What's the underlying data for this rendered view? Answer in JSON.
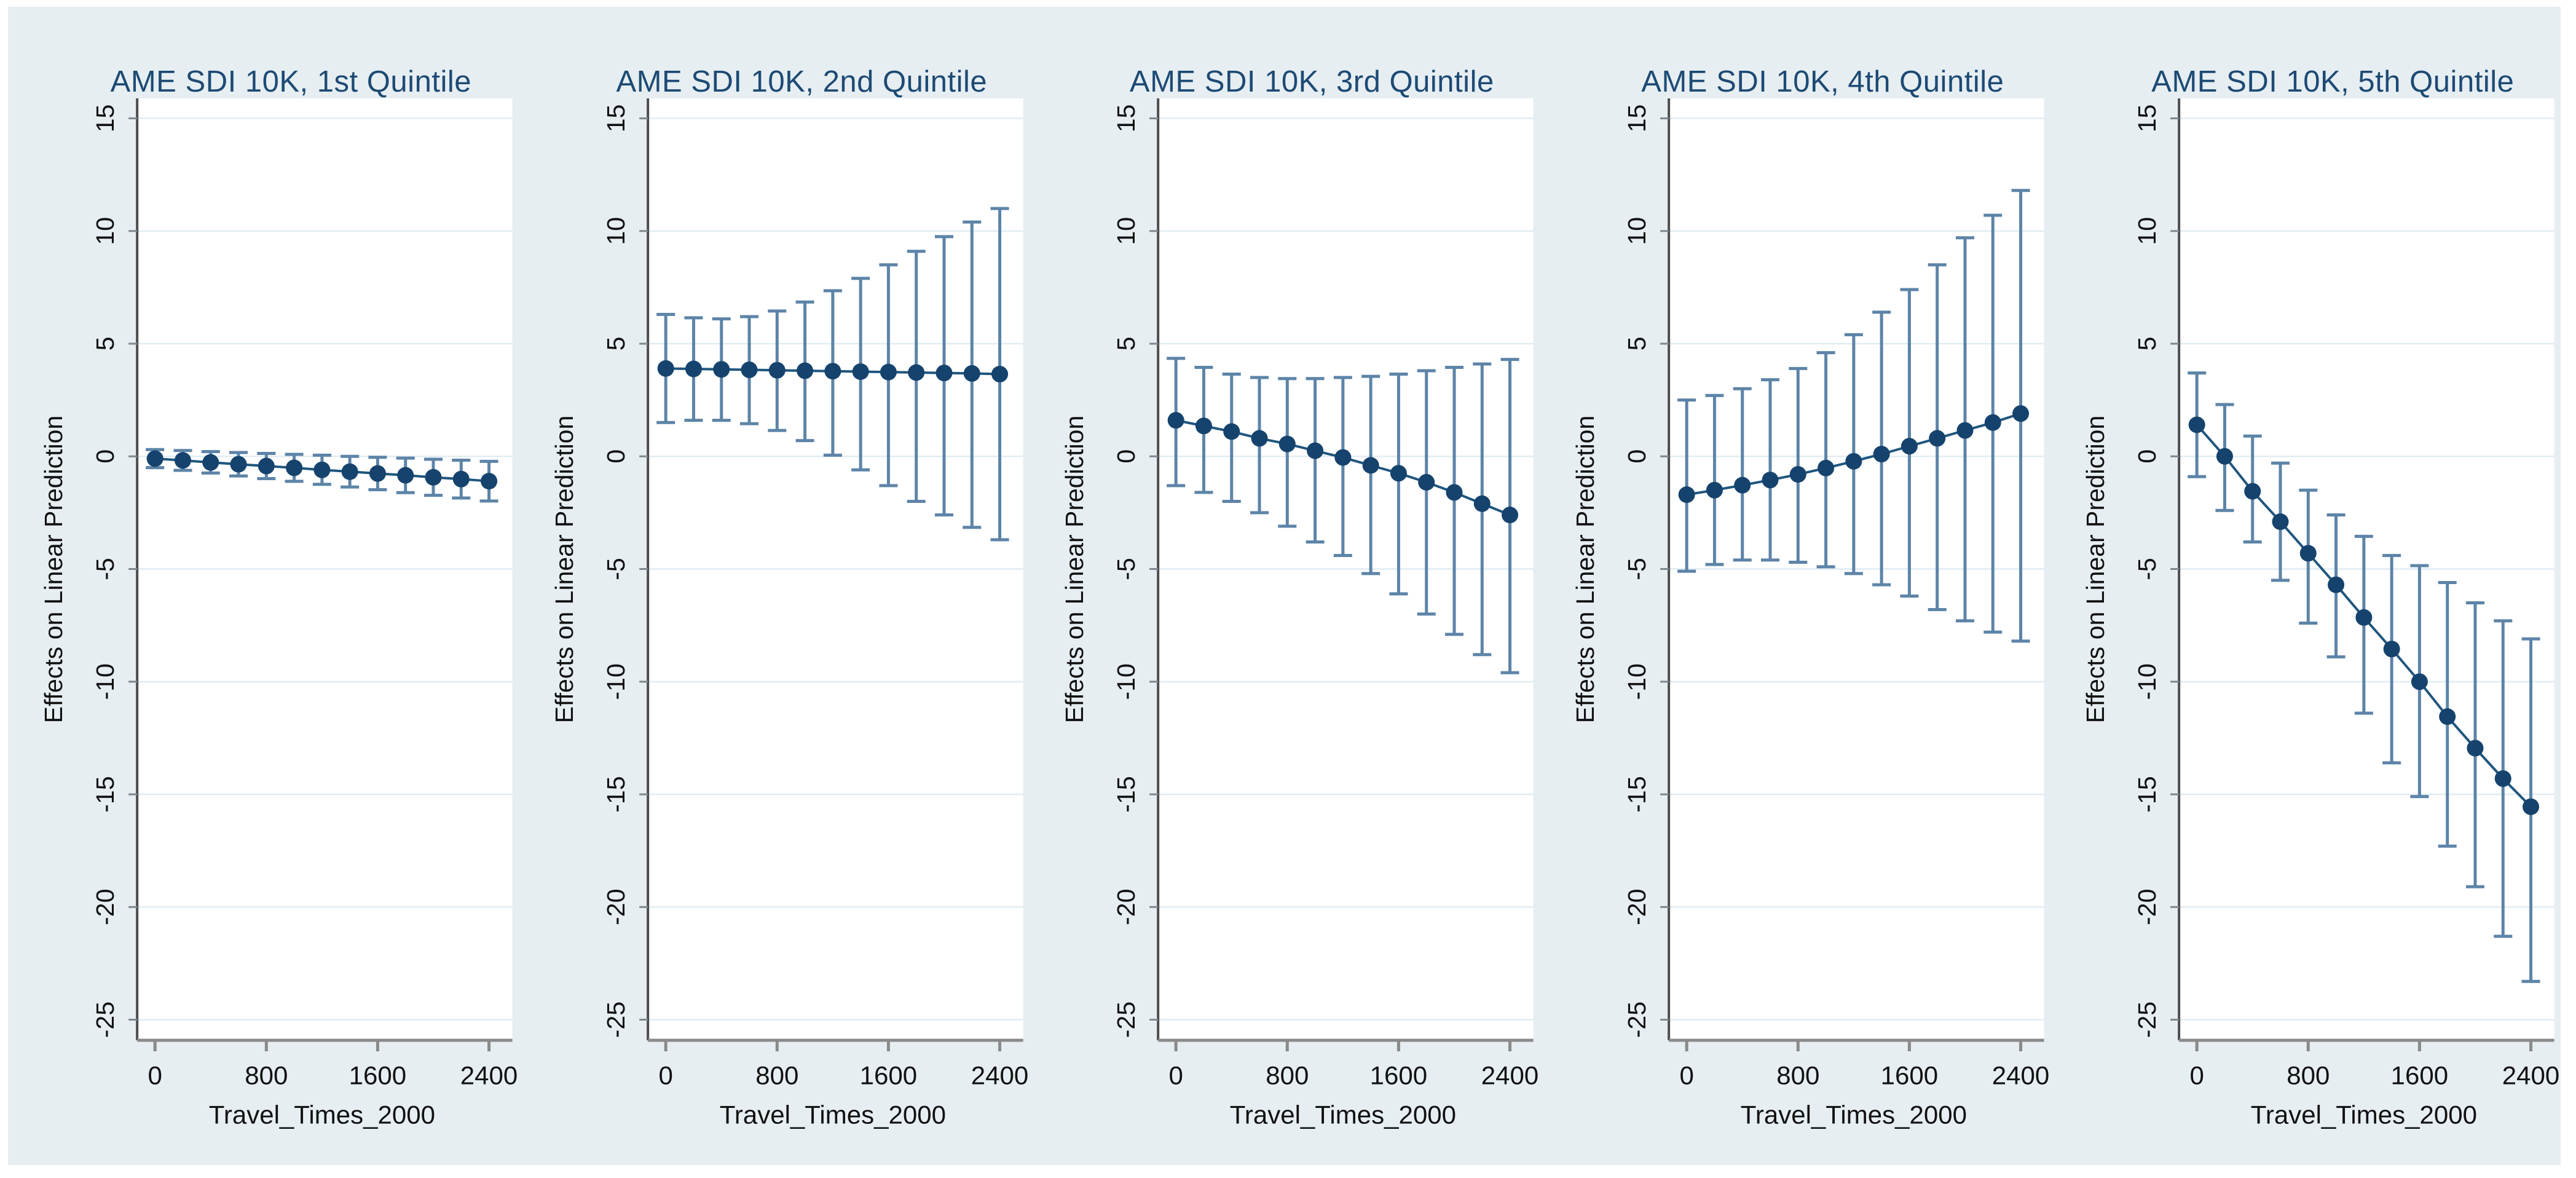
{
  "figure": {
    "background": "#e6eef2",
    "plot_background": "#ffffff",
    "title_color": "#1d4a74",
    "marker_color": "#15436d",
    "trend_line_color": "#1f567e",
    "errorbar_color": "#5d84a8",
    "grid_color": "#e0ecf3",
    "y_axis_color": "#4d4d4d",
    "x_axis_color": "#8a8a8a",
    "tick_color": "#7d878d",
    "tick_label_color": "#111111",
    "axis_title_color": "#111111"
  },
  "chart_data": [
    {
      "type": "errorbar-line",
      "title": "AME SDI 10K, 1st Quintile",
      "xlabel": "Travel_Times_2000",
      "ylabel": "Effects on Linear Prediction",
      "x": [
        0,
        200,
        400,
        600,
        800,
        1000,
        1200,
        1400,
        1600,
        1800,
        2000,
        2200,
        2400
      ],
      "est": [
        -0.1,
        -0.18,
        -0.27,
        -0.35,
        -0.43,
        -0.51,
        -0.6,
        -0.68,
        -0.76,
        -0.84,
        -0.93,
        -1.01,
        -1.1
      ],
      "hi": [
        0.3,
        0.26,
        0.21,
        0.17,
        0.13,
        0.09,
        0.05,
        0.0,
        -0.04,
        -0.08,
        -0.13,
        -0.17,
        -0.22
      ],
      "lo": [
        -0.5,
        -0.62,
        -0.74,
        -0.87,
        -0.99,
        -1.11,
        -1.24,
        -1.36,
        -1.48,
        -1.61,
        -1.73,
        -1.85,
        -1.98
      ],
      "xticks": [
        0,
        800,
        1600,
        2400
      ],
      "yticks": [
        15,
        10,
        5,
        0,
        -5,
        -10,
        -15,
        -20,
        -25
      ],
      "xlim": [
        -128,
        2568
      ],
      "ylim": [
        -25.9,
        15.9
      ],
      "grid": true,
      "legend": null
    },
    {
      "type": "errorbar-line",
      "title": "AME SDI 10K, 2nd Quintile",
      "xlabel": "Travel_Times_2000",
      "ylabel": "Effects on Linear Prediction",
      "x": [
        0,
        200,
        400,
        600,
        800,
        1000,
        1200,
        1400,
        1600,
        1800,
        2000,
        2200,
        2400
      ],
      "est": [
        3.9,
        3.88,
        3.86,
        3.84,
        3.82,
        3.8,
        3.78,
        3.76,
        3.74,
        3.72,
        3.7,
        3.68,
        3.65
      ],
      "hi": [
        6.3,
        6.15,
        6.1,
        6.2,
        6.45,
        6.85,
        7.35,
        7.9,
        8.5,
        9.1,
        9.75,
        10.4,
        11.0
      ],
      "lo": [
        1.5,
        1.6,
        1.6,
        1.45,
        1.15,
        0.7,
        0.05,
        -0.6,
        -1.3,
        -2.0,
        -2.6,
        -3.15,
        -3.7
      ],
      "xticks": [
        0,
        800,
        1600,
        2400
      ],
      "yticks": [
        15,
        10,
        5,
        0,
        -5,
        -10,
        -15,
        -20,
        -25
      ],
      "xlim": [
        -128,
        2568
      ],
      "ylim": [
        -25.9,
        15.9
      ],
      "grid": true,
      "legend": null
    },
    {
      "type": "errorbar-line",
      "title": "AME SDI 10K, 3rd Quintile",
      "xlabel": "Travel_Times_2000",
      "ylabel": "Effects on Linear Prediction",
      "x": [
        0,
        200,
        400,
        600,
        800,
        1000,
        1200,
        1400,
        1600,
        1800,
        2000,
        2200,
        2400
      ],
      "est": [
        1.6,
        1.35,
        1.1,
        0.8,
        0.55,
        0.25,
        -0.05,
        -0.4,
        -0.75,
        -1.15,
        -1.6,
        -2.1,
        -2.6
      ],
      "hi": [
        4.35,
        3.95,
        3.65,
        3.5,
        3.45,
        3.45,
        3.5,
        3.55,
        3.65,
        3.8,
        3.95,
        4.1,
        4.3
      ],
      "lo": [
        -1.3,
        -1.6,
        -2.0,
        -2.5,
        -3.1,
        -3.8,
        -4.4,
        -5.2,
        -6.1,
        -7.0,
        -7.9,
        -8.8,
        -9.6
      ],
      "xticks": [
        0,
        800,
        1600,
        2400
      ],
      "yticks": [
        15,
        10,
        5,
        0,
        -5,
        -10,
        -15,
        -20,
        -25
      ],
      "xlim": [
        -128,
        2568
      ],
      "ylim": [
        -25.9,
        15.9
      ],
      "grid": true,
      "legend": null
    },
    {
      "type": "errorbar-line",
      "title": "AME SDI 10K, 4th Quintile",
      "xlabel": "Travel_Times_2000",
      "ylabel": "Effects on Linear Prediction",
      "x": [
        0,
        200,
        400,
        600,
        800,
        1000,
        1200,
        1400,
        1600,
        1800,
        2000,
        2200,
        2400
      ],
      "est": [
        -1.7,
        -1.5,
        -1.28,
        -1.05,
        -0.8,
        -0.52,
        -0.22,
        0.1,
        0.45,
        0.8,
        1.15,
        1.5,
        1.9
      ],
      "hi": [
        2.5,
        2.7,
        3.0,
        3.4,
        3.9,
        4.6,
        5.4,
        6.4,
        7.4,
        8.5,
        9.7,
        10.7,
        11.8
      ],
      "lo": [
        -5.1,
        -4.8,
        -4.6,
        -4.6,
        -4.7,
        -4.9,
        -5.2,
        -5.7,
        -6.2,
        -6.8,
        -7.3,
        -7.8,
        -8.2
      ],
      "xticks": [
        0,
        800,
        1600,
        2400
      ],
      "yticks": [
        15,
        10,
        5,
        0,
        -5,
        -10,
        -15,
        -20,
        -25
      ],
      "xlim": [
        -128,
        2568
      ],
      "ylim": [
        -25.9,
        15.9
      ],
      "grid": true,
      "legend": null
    },
    {
      "type": "errorbar-line",
      "title": "AME SDI 10K, 5th Quintile",
      "xlabel": "Travel_Times_2000",
      "ylabel": "Effects on Linear Prediction",
      "x": [
        0,
        200,
        400,
        600,
        800,
        1000,
        1200,
        1400,
        1600,
        1800,
        2000,
        2200,
        2400
      ],
      "est": [
        1.4,
        0.0,
        -1.55,
        -2.9,
        -4.3,
        -5.7,
        -7.15,
        -8.55,
        -10.0,
        -11.55,
        -12.95,
        -14.3,
        -15.55
      ],
      "hi": [
        3.7,
        2.3,
        0.9,
        -0.3,
        -1.5,
        -2.6,
        -3.55,
        -4.4,
        -4.85,
        -5.6,
        -6.5,
        -7.3,
        -8.1
      ],
      "lo": [
        -0.9,
        -2.4,
        -3.8,
        -5.5,
        -7.4,
        -8.9,
        -11.4,
        -13.6,
        -15.1,
        -17.3,
        -19.1,
        -21.3,
        -23.3
      ],
      "xticks": [
        0,
        800,
        1600,
        2400
      ],
      "yticks": [
        15,
        10,
        5,
        0,
        -5,
        -10,
        -15,
        -20,
        -25
      ],
      "xlim": [
        -128,
        2568
      ],
      "ylim": [
        -25.9,
        15.9
      ],
      "grid": true,
      "legend": null
    }
  ]
}
